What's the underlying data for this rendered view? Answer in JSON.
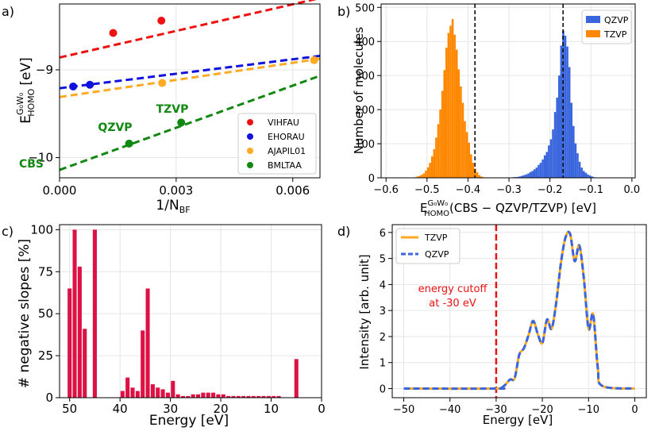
{
  "chart_data": [
    {
      "panel": "a)",
      "type": "scatter",
      "xlabel": "1/N",
      "xlabel_sub": "BF",
      "ylabel": "E",
      "ylabel_sup": "G₀W₀",
      "ylabel_sub": "HOMO",
      "ylabel_unit": "[eV]",
      "xlim": [
        0,
        0.0067
      ],
      "ylim": [
        -10.23,
        -8.25
      ],
      "xticks": [
        0.0,
        0.003,
        0.006
      ],
      "xtick_labels": [
        "0.000",
        "0.003",
        "0.006"
      ],
      "yticks": [
        -9,
        -10
      ],
      "ytick_labels": [
        "−9",
        "−10"
      ],
      "series": [
        {
          "name": "VIHFAU",
          "color": "#ee1111",
          "x": [
            0.00138,
            0.00262
          ],
          "y": [
            -8.58,
            -8.44
          ],
          "fit": [
            -8.86,
            101
          ]
        },
        {
          "name": "EHORAU",
          "color": "#1111dd",
          "x": [
            0.00035,
            0.00078
          ],
          "y": [
            -9.19,
            -9.17
          ],
          "fit": [
            -9.21,
            55
          ]
        },
        {
          "name": "AJAPIL01",
          "color": "#ffaa22",
          "x": [
            0.00264,
            0.00655
          ],
          "y": [
            -9.15,
            -8.89
          ],
          "fit": [
            -9.31,
            65
          ]
        },
        {
          "name": "BMLTAA",
          "color": "#118811",
          "x": [
            0.00179,
            0.00313
          ],
          "y": [
            -9.84,
            -9.6
          ],
          "fit": [
            -10.14,
            160
          ]
        }
      ],
      "annotations": [
        "CBS",
        "QZVP",
        "TZVP"
      ]
    },
    {
      "panel": "b)",
      "type": "bar",
      "xlabel": "E",
      "xlabel_sup": "G₀W₀",
      "xlabel_sub": "HOMO",
      "xlabel_rest": "(CBS − QZVP/TZVP) [eV]",
      "ylabel": "Number of molecules",
      "xlim": [
        -0.612,
        0.008
      ],
      "ylim": [
        0,
        510
      ],
      "xticks": [
        -0.6,
        -0.5,
        -0.4,
        -0.3,
        -0.2,
        -0.1,
        0.0
      ],
      "xtick_labels": [
        "−0.6",
        "−0.5",
        "−0.4",
        "−0.3",
        "−0.2",
        "−0.1",
        "0.0"
      ],
      "yticks": [
        0,
        100,
        200,
        300,
        400,
        500
      ],
      "ytick_labels": [
        "0",
        "100",
        "200",
        "300",
        "400",
        "500"
      ],
      "bin_width": 0.005,
      "series": [
        {
          "name": "QZVP",
          "color": "#3a66dd",
          "start": -0.29,
          "values": [
            2,
            2,
            3,
            4,
            6,
            8,
            10,
            13,
            17,
            20,
            25,
            30,
            38,
            44,
            54,
            66,
            76,
            95,
            113,
            142,
            193,
            235,
            300,
            388,
            432,
            417,
            385,
            325,
            220,
            152,
            101,
            72,
            47,
            30,
            20,
            15,
            10,
            7,
            4,
            2
          ]
        },
        {
          "name": "TZVP",
          "color": "#ff8800",
          "start": -0.535,
          "values": [
            1,
            2,
            4,
            6,
            9,
            13,
            21,
            31,
            44,
            63,
            84,
            118,
            157,
            200,
            255,
            316,
            382,
            425,
            446,
            466,
            420,
            376,
            318,
            268,
            220,
            166,
            134,
            103,
            69,
            44,
            27,
            16,
            8,
            4,
            2
          ]
        }
      ],
      "vlines": [
        -0.383,
        -0.168
      ]
    },
    {
      "panel": "c)",
      "type": "bar",
      "xlabel": "Energy [eV]",
      "ylabel": "# negative slopes [%]",
      "xlim": [
        -52,
        0
      ],
      "ylim": [
        0,
        103
      ],
      "xticks": [
        -50,
        -40,
        -30,
        -20,
        -10,
        0
      ],
      "xtick_labels": [
        "50",
        "40",
        "30",
        "20",
        "10",
        "0"
      ],
      "yticks": [
        0,
        25,
        50,
        75,
        100
      ],
      "ytick_labels": [
        "0",
        "25",
        "50",
        "75",
        "100"
      ],
      "color": "#dd1144",
      "x": [
        -50,
        -49,
        -48,
        -47,
        -46,
        -45,
        -39.5,
        -38.5,
        -37.5,
        -36.5,
        -35.5,
        -34.5,
        -33.5,
        -32.5,
        -31.5,
        -30.5,
        -29.5,
        -28.5,
        -27.5,
        -26.5,
        -25.5,
        -24.5,
        -23.5,
        -22.5,
        -21.5,
        -20.5,
        -19.5,
        -18.5,
        -17.5,
        -16.5,
        -15.5,
        -14.5,
        -13.5,
        -12.5,
        -11.5,
        -10.5,
        -9.5,
        -8.5,
        -5
      ],
      "values": [
        65,
        100,
        78,
        41,
        0,
        100,
        4,
        12,
        6,
        4,
        40,
        65,
        8,
        6,
        5,
        3,
        10,
        2,
        1,
        1,
        2,
        2,
        3,
        3,
        3,
        2,
        2,
        1,
        1,
        1,
        1,
        1,
        1,
        1,
        1,
        1,
        1,
        1,
        23
      ]
    },
    {
      "panel": "d)",
      "type": "line",
      "xlabel": "Energy [eV]",
      "ylabel": "Intensity [arb. unit]",
      "xlim": [
        -52.5,
        2.5
      ],
      "ylim": [
        -0.35,
        6.3
      ],
      "xticks": [
        -50,
        -40,
        -30,
        -20,
        -10,
        0
      ],
      "xtick_labels": [
        "−50",
        "−40",
        "−30",
        "−20",
        "−10",
        "0"
      ],
      "yticks": [
        0,
        1,
        2,
        3,
        4,
        5,
        6
      ],
      "ytick_labels": [
        "0",
        "1",
        "2",
        "3",
        "4",
        "5",
        "6"
      ],
      "x": [
        -50,
        -30,
        -29,
        -28,
        -27,
        -26,
        -25,
        -24,
        -23,
        -22,
        -21,
        -20,
        -19,
        -18,
        -17,
        -16,
        -15,
        -14,
        -13,
        -12,
        -11,
        -10,
        -9,
        -8,
        -7,
        0
      ],
      "series": [
        {
          "name": "TZVP",
          "color": "#ffaa22",
          "dash": "solid",
          "y": [
            0,
            0,
            0.02,
            0.15,
            0.35,
            0.4,
            1.3,
            1.55,
            2.05,
            2.6,
            2.1,
            1.75,
            2.65,
            2.3,
            3.3,
            4.8,
            5.8,
            5.95,
            4.9,
            5.5,
            4.2,
            2.3,
            2.85,
            0.8,
            0.1,
            0
          ]
        },
        {
          "name": "QZVP",
          "color": "#3a66dd",
          "dash": "dashed",
          "y": [
            0,
            0,
            0.02,
            0.15,
            0.35,
            0.4,
            1.3,
            1.55,
            2.05,
            2.6,
            2.1,
            1.75,
            2.65,
            2.3,
            3.3,
            4.8,
            5.8,
            5.95,
            4.9,
            5.5,
            4.2,
            2.3,
            2.85,
            0.8,
            0.1,
            0
          ]
        }
      ],
      "vline": -30,
      "vline_color": "#ee1111",
      "annotation": [
        "energy cutoff",
        "at -30 eV"
      ]
    }
  ]
}
